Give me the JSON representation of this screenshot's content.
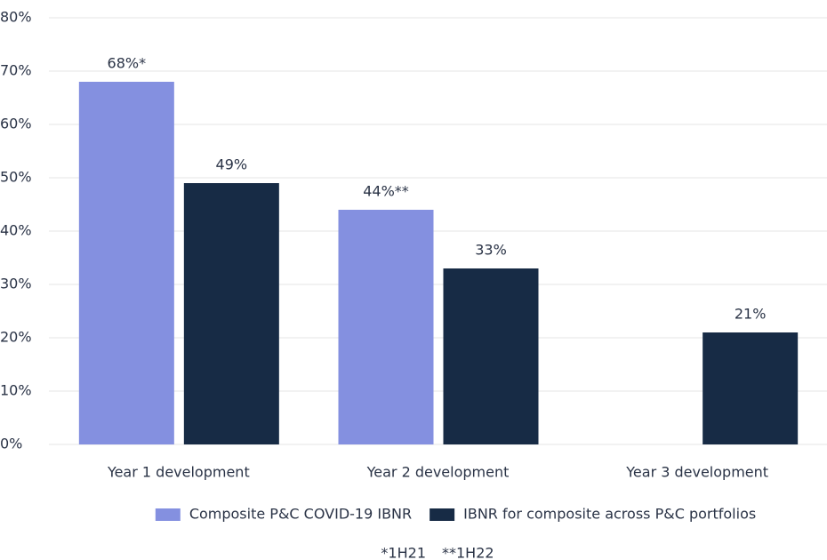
{
  "chart_data": {
    "type": "bar",
    "categories": [
      "Year 1 development",
      "Year 2 development",
      "Year 3 development"
    ],
    "series": [
      {
        "name": "Composite P&C COVID-19 IBNR",
        "color": "#8490e0",
        "values": [
          68,
          44,
          null
        ],
        "value_labels": [
          "68%*",
          "44%**",
          null
        ]
      },
      {
        "name": "IBNR for composite across P&C portfolios",
        "color": "#172b45",
        "values": [
          49,
          33,
          21
        ],
        "value_labels": [
          "49%",
          "33%",
          "21%"
        ]
      }
    ],
    "ylim": [
      0,
      80
    ],
    "yticks": [
      {
        "value": 0,
        "label": "0%"
      },
      {
        "value": 10,
        "label": "10%"
      },
      {
        "value": 20,
        "label": "20%"
      },
      {
        "value": 30,
        "label": "30%"
      },
      {
        "value": 40,
        "label": "40%"
      },
      {
        "value": 50,
        "label": "50%"
      },
      {
        "value": 60,
        "label": "60%"
      },
      {
        "value": 70,
        "label": "70%"
      },
      {
        "value": 80,
        "label": "80%"
      }
    ],
    "grid": true,
    "legend": "bottom",
    "footnotes": [
      "*1H21",
      "**1H22"
    ]
  }
}
